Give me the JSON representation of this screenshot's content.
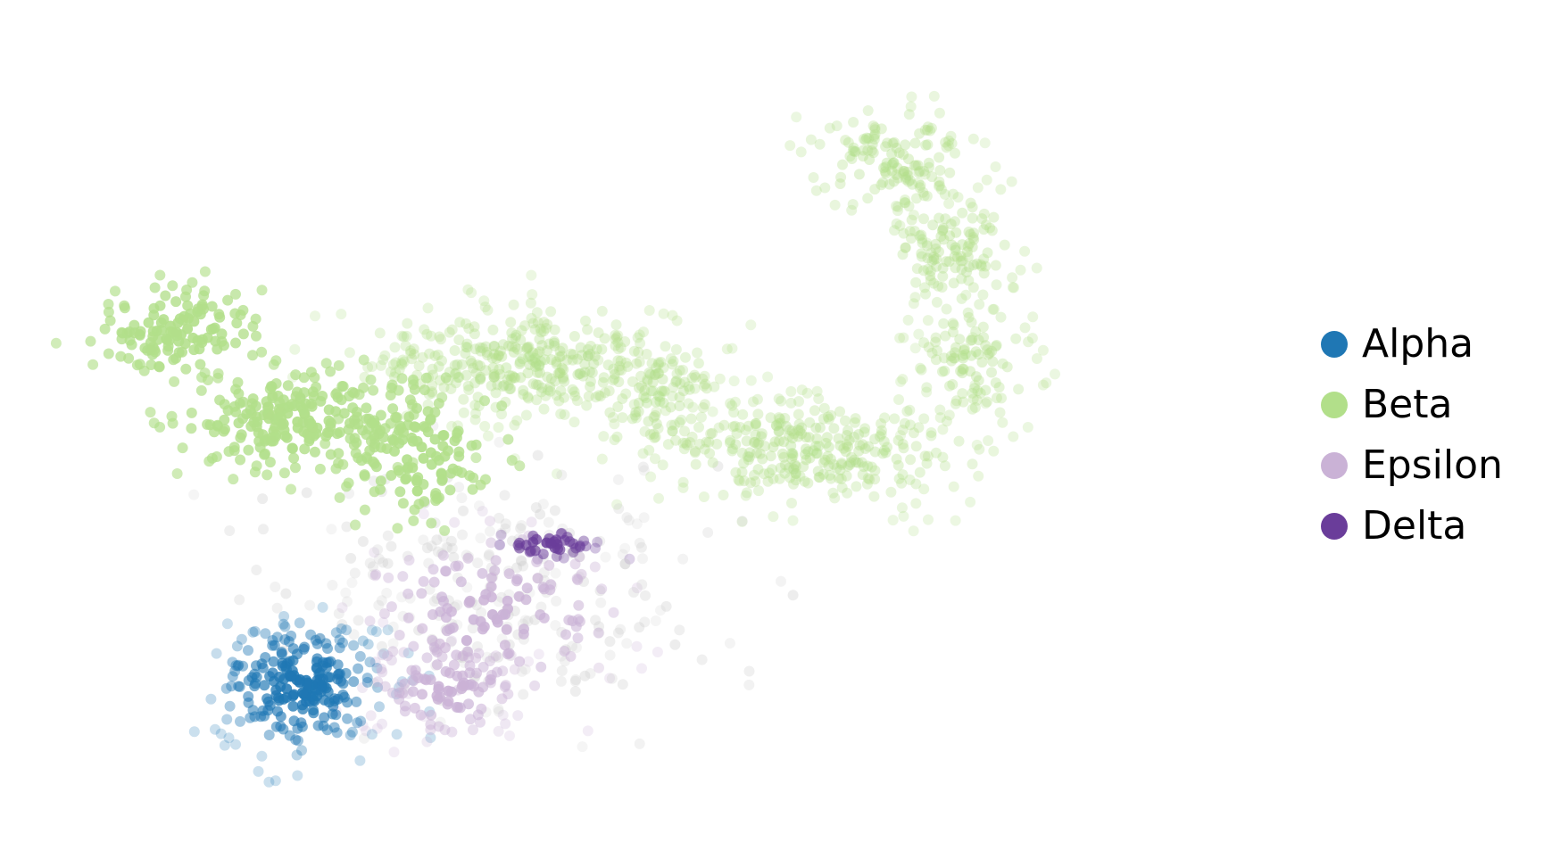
{
  "chart_data": {
    "type": "scatter",
    "title": "",
    "xlabel": "",
    "ylabel": "",
    "axes_visible": false,
    "grid": false,
    "legend_placement": "right",
    "xlim": [
      0,
      100
    ],
    "ylim": [
      0,
      100
    ],
    "point_color_encodes": "cluster membership strength (strong = saturated, weak = faded)",
    "series": [
      {
        "name": "Alpha",
        "color": "#1f77b4",
        "clusters": [
          {
            "cx": 19.5,
            "cy": 17.5,
            "sx": 3.6,
            "sy": 4.4,
            "n": 240
          }
        ]
      },
      {
        "name": "Beta",
        "color": "#b2df8a",
        "clusters": [
          {
            "cx": 9.5,
            "cy": 64.0,
            "sx": 3.6,
            "sy": 3.0,
            "n": 130
          },
          {
            "cx": 19.0,
            "cy": 52.0,
            "sx": 5.0,
            "sy": 3.4,
            "n": 220
          },
          {
            "cx": 29.5,
            "cy": 48.0,
            "sx": 3.6,
            "sy": 4.6,
            "n": 140
          },
          {
            "cx": 39.0,
            "cy": 59.5,
            "sx": 7.0,
            "sy": 3.8,
            "n": 360
          },
          {
            "cx": 50.0,
            "cy": 55.0,
            "sx": 3.0,
            "sy": 4.0,
            "n": 100
          },
          {
            "cx": 63.0,
            "cy": 48.5,
            "sx": 7.0,
            "sy": 3.4,
            "n": 320
          },
          {
            "cx": 70.0,
            "cy": 86.0,
            "sx": 3.6,
            "sy": 3.4,
            "n": 140
          },
          {
            "cx": 75.5,
            "cy": 75.0,
            "sx": 2.8,
            "sy": 4.4,
            "n": 130
          },
          {
            "cx": 77.0,
            "cy": 60.0,
            "sx": 2.6,
            "sy": 4.0,
            "n": 110
          }
        ]
      },
      {
        "name": "Epsilon",
        "color": "#cab2d6",
        "clusters": [
          {
            "cx": 32.0,
            "cy": 17.0,
            "sx": 3.4,
            "sy": 3.2,
            "n": 100
          },
          {
            "cx": 36.0,
            "cy": 27.0,
            "sx": 6.0,
            "sy": 6.0,
            "n": 140
          }
        ]
      },
      {
        "name": "Delta",
        "color": "#6a3d9a",
        "clusters": [
          {
            "cx": 40.5,
            "cy": 36.0,
            "sx": 2.2,
            "sy": 1.0,
            "n": 40
          }
        ]
      }
    ]
  },
  "legend": {
    "items": [
      {
        "label": "Alpha",
        "color": "#1f77b4"
      },
      {
        "label": "Beta",
        "color": "#b2df8a"
      },
      {
        "label": "Epsilon",
        "color": "#cab2d6"
      },
      {
        "label": "Delta",
        "color": "#6a3d9a"
      }
    ]
  }
}
